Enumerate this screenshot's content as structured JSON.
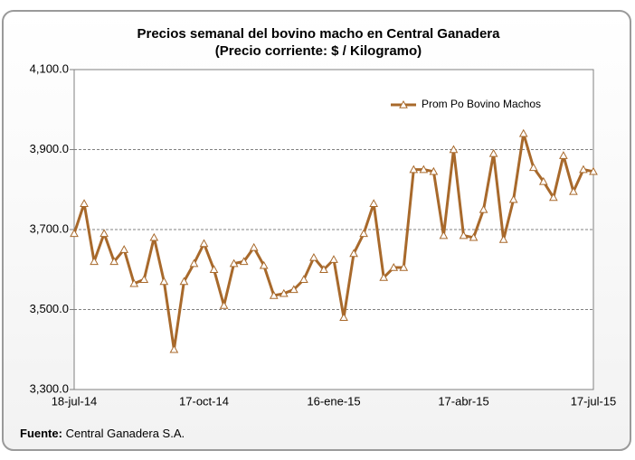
{
  "chart_data": {
    "type": "line",
    "title": "Precios semanal del bovino  macho en Central Ganadera",
    "subtitle": "(Precio corriente: $ / Kilogramo)",
    "categories": [
      "18-jul-14",
      null,
      null,
      null,
      null,
      null,
      null,
      null,
      null,
      null,
      null,
      null,
      null,
      "17-oct-14",
      null,
      null,
      null,
      null,
      null,
      null,
      null,
      null,
      null,
      null,
      null,
      null,
      "16-ene-15",
      null,
      null,
      null,
      null,
      null,
      null,
      null,
      null,
      null,
      null,
      null,
      null,
      "17-abr-15",
      null,
      null,
      null,
      null,
      null,
      null,
      null,
      null,
      null,
      null,
      null,
      null,
      "17-jul-15"
    ],
    "series": [
      {
        "name": "Prom Po Bovino Machos",
        "color": "#a8692b",
        "values": [
          3690,
          3765,
          3620,
          3690,
          3620,
          3650,
          3565,
          3575,
          3680,
          3570,
          3400,
          3570,
          3615,
          3665,
          3600,
          3510,
          3615,
          3620,
          3655,
          3610,
          3535,
          3540,
          3550,
          3575,
          3630,
          3600,
          3625,
          3480,
          3640,
          3690,
          3765,
          3580,
          3605,
          3605,
          3850,
          3850,
          3845,
          3685,
          3900,
          3685,
          3680,
          3750,
          3890,
          3675,
          3775,
          3940,
          3855,
          3820,
          3780,
          3885,
          3795,
          3850,
          3845
        ]
      }
    ],
    "ylim": [
      3300,
      4100
    ],
    "yticks": [
      {
        "value": 3300,
        "label": "3,300.0"
      },
      {
        "value": 3500,
        "label": "3,500.0"
      },
      {
        "value": 3700,
        "label": "3,700.0"
      },
      {
        "value": 3900,
        "label": "3,900.0"
      },
      {
        "value": 4100,
        "label": "4,100.0"
      }
    ],
    "grid": true,
    "legend": "top-right",
    "source_label": "Fuente:",
    "source": "Central Ganadera S.A."
  }
}
